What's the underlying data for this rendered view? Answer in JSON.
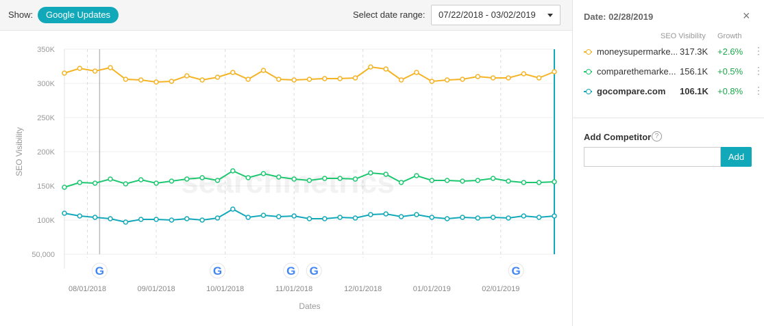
{
  "toolbar": {
    "show_label": "Show:",
    "updates_pill": "Google Updates",
    "date_range_label": "Select date range:",
    "date_range_value": "07/22/2018 - 03/02/2019"
  },
  "sidebar": {
    "date": "Date: 02/28/2019",
    "col_visibility": "SEO Visibility",
    "col_growth": "Growth",
    "competitors": [
      {
        "name": "moneysupermarke...",
        "value": "317.3K",
        "growth": "+2.6%",
        "color": "#f5b324",
        "bold": false
      },
      {
        "name": "comparethemarke...",
        "value": "156.1K",
        "growth": "+0.5%",
        "color": "#1dc770",
        "bold": false
      },
      {
        "name": "gocompare.com",
        "value": "106.1K",
        "growth": "+0.8%",
        "color": "#11a8b9",
        "bold": true
      }
    ],
    "add_competitor_label": "Add Competitor",
    "help_icon": "?",
    "add_button": "Add",
    "close_icon": "×",
    "more_icon": "⋮"
  },
  "chart_data": {
    "type": "line",
    "ylabel": "SEO Visibility",
    "xlabel": "Dates",
    "ylim": [
      50000,
      350000
    ],
    "y_ticks": [
      {
        "value": 350000,
        "label": "350K"
      },
      {
        "value": 300000,
        "label": "300K"
      },
      {
        "value": 250000,
        "label": "250K"
      },
      {
        "value": 200000,
        "label": "200K"
      },
      {
        "value": 150000,
        "label": "150K"
      },
      {
        "value": 100000,
        "label": "100K"
      },
      {
        "value": 50000,
        "label": "50,000"
      }
    ],
    "x_tick_labels": [
      "08/01/2018",
      "09/01/2018",
      "10/01/2018",
      "11/01/2018",
      "12/01/2018",
      "01/01/2019",
      "02/01/2019"
    ],
    "x_tick_positions": [
      1.5,
      6.0,
      10.5,
      15.0,
      19.5,
      24.0,
      28.5
    ],
    "google_update_positions": [
      2.3,
      10.0,
      14.8,
      16.3,
      29.5
    ],
    "selected_index": 2.3,
    "watermark": "searchmetrics",
    "series": [
      {
        "name": "moneysupermarke...",
        "color": "#f5b324",
        "values": [
          315000,
          322000,
          318000,
          323000,
          306000,
          305000,
          302000,
          303000,
          311000,
          305000,
          309000,
          316000,
          306000,
          319000,
          306000,
          305000,
          306000,
          307000,
          307000,
          308000,
          324000,
          321000,
          305000,
          316000,
          303000,
          305000,
          306000,
          310000,
          308000,
          308000,
          314000,
          308000,
          317000
        ]
      },
      {
        "name": "comparethemarke...",
        "color": "#1dc770",
        "values": [
          148000,
          155000,
          154000,
          160000,
          153000,
          159000,
          154000,
          157000,
          160000,
          162000,
          158000,
          172000,
          162000,
          168000,
          163000,
          160000,
          158000,
          161000,
          161000,
          160000,
          169000,
          167000,
          155000,
          165000,
          158000,
          158000,
          157000,
          158000,
          161000,
          157000,
          155000,
          155000,
          156000
        ]
      },
      {
        "name": "gocompare.com",
        "color": "#11a8b9",
        "values": [
          110000,
          106000,
          104000,
          102000,
          97000,
          101000,
          101000,
          100000,
          102000,
          100000,
          103000,
          116000,
          104000,
          107000,
          105000,
          106000,
          102000,
          102000,
          104000,
          103000,
          108000,
          109000,
          105000,
          108000,
          104000,
          102000,
          104000,
          103000,
          104000,
          103000,
          106000,
          104000,
          106000
        ]
      }
    ]
  }
}
